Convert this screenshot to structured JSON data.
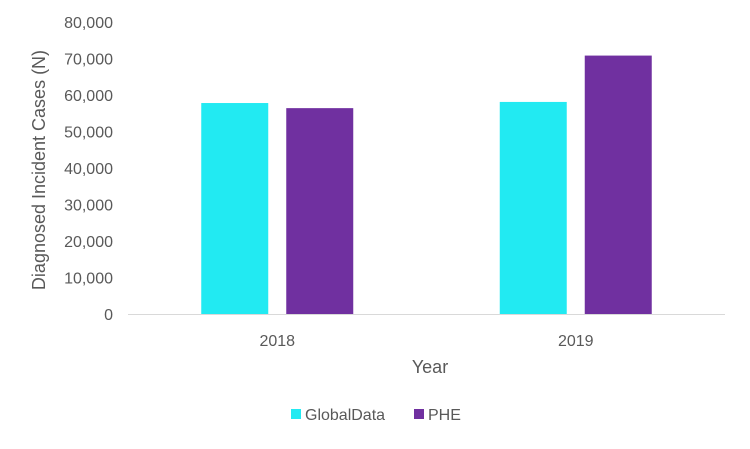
{
  "chart_data": {
    "type": "bar",
    "title": "",
    "xlabel": "Year",
    "ylabel": "Diagnosed Incident Cases (N)",
    "categories": [
      "2018",
      "2019"
    ],
    "series": [
      {
        "name": "GlobalData",
        "values": [
          57800,
          58100
        ],
        "color": "#22EAF2"
      },
      {
        "name": "PHE",
        "values": [
          56400,
          70800
        ],
        "color": "#7030A0"
      }
    ],
    "ylim": [
      0,
      80000
    ],
    "yticks": [
      0,
      10000,
      20000,
      30000,
      40000,
      50000,
      60000,
      70000,
      80000
    ],
    "ytick_labels": [
      "0",
      "10,000",
      "20,000",
      "30,000",
      "40,000",
      "50,000",
      "60,000",
      "70,000",
      "80,000"
    ],
    "grid": false,
    "legend_position": "bottom"
  }
}
